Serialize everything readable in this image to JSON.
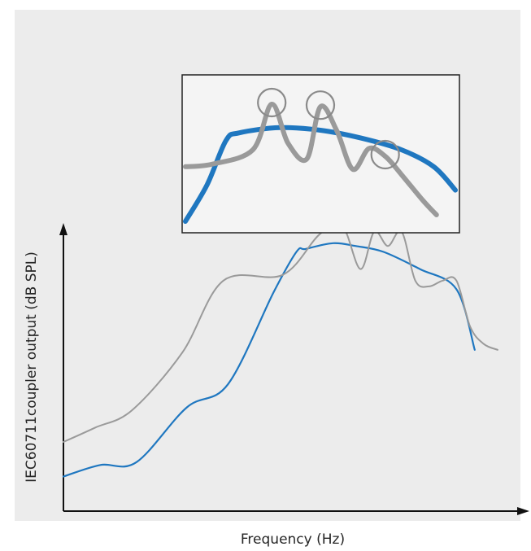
{
  "chart_data": {
    "type": "line",
    "title": "",
    "xlabel": "Frequency (Hz)",
    "ylabel": "IEC60711coupler output (dB SPL)",
    "x_ticks": [],
    "y_ticks": [],
    "grid": false,
    "legend": "none",
    "xlim": [
      0,
      100
    ],
    "ylim": [
      0,
      100
    ],
    "series": [
      {
        "color": "#1f77c0",
        "x": [
          0,
          8,
          16,
          27,
          36,
          46,
          51,
          53,
          59,
          64,
          70,
          78,
          86,
          90
        ],
        "y": [
          12,
          16,
          17,
          36,
          44,
          76,
          90,
          91,
          93,
          92,
          90,
          84,
          77,
          56
        ]
      },
      {
        "color": "#9a9a9a",
        "x": [
          0,
          7,
          15,
          26,
          35,
          48,
          56,
          61,
          65,
          68,
          71,
          74,
          77,
          80,
          83,
          86,
          89,
          92,
          95
        ],
        "y": [
          24,
          29,
          35,
          55,
          80,
          82,
          96,
          99,
          84,
          97,
          92,
          97,
          80,
          78,
          80,
          80,
          64,
          58,
          56
        ]
      }
    ],
    "inset": {
      "description_free": true,
      "blue": {
        "x": [
          0,
          8,
          15,
          20,
          35,
          50,
          65,
          80,
          92,
          100
        ],
        "y": [
          0,
          28,
          62,
          68,
          72,
          70,
          64,
          55,
          42,
          24
        ]
      },
      "gray": {
        "x": [
          0,
          10,
          25,
          32,
          38,
          45,
          50,
          56,
          62,
          68,
          74,
          80,
          88,
          93
        ],
        "y": [
          42,
          44,
          55,
          90,
          60,
          48,
          88,
          70,
          40,
          56,
          50,
          36,
          16,
          5
        ]
      },
      "circles_at_x": [
        32,
        50,
        74
      ]
    }
  }
}
